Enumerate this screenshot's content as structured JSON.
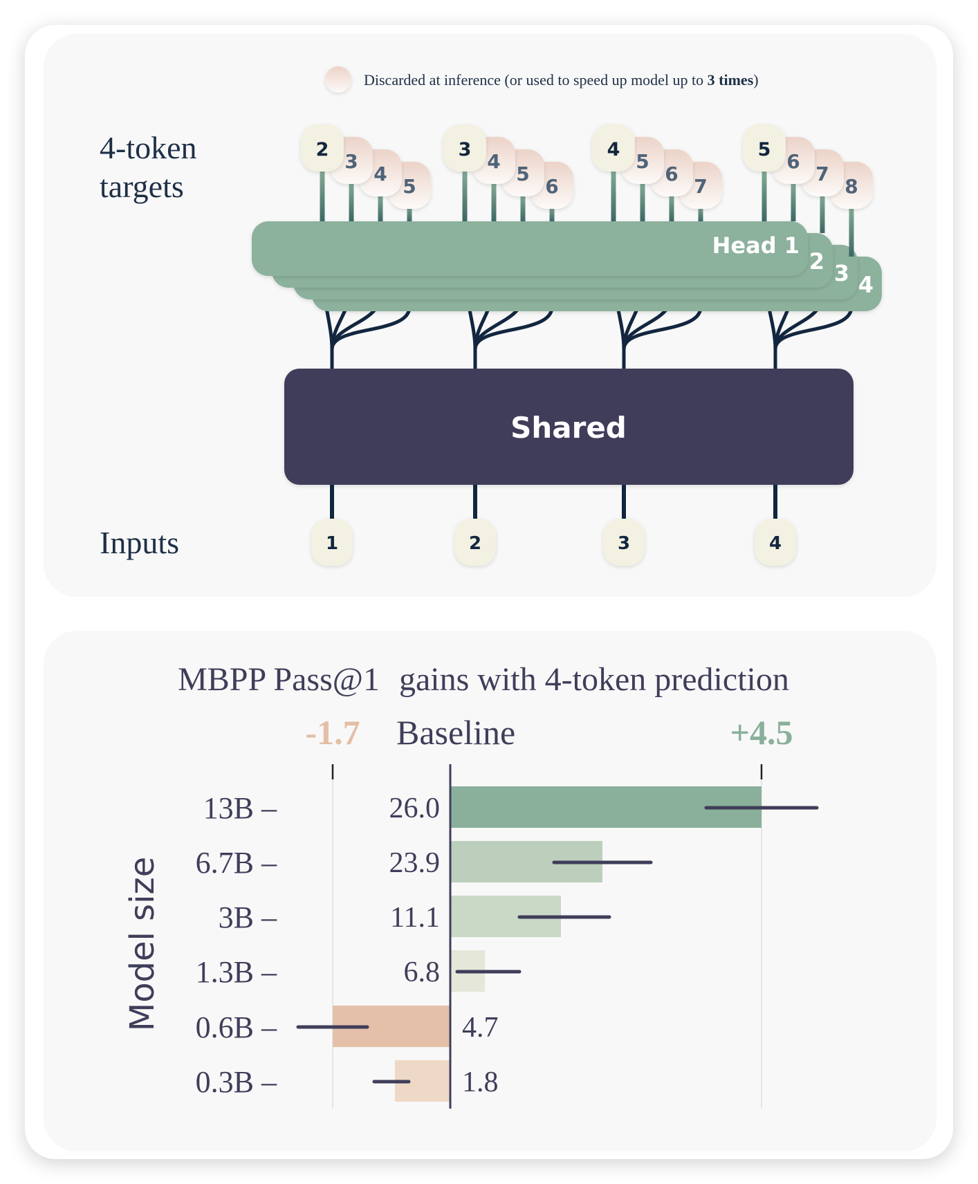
{
  "diagram": {
    "legend": {
      "text_prefix": "Discarded at inference (or used to speed up model up to ",
      "text_bold": "3 times",
      "text_suffix": ")"
    },
    "targets_label_line1": "4-token",
    "targets_label_line2": "targets",
    "inputs_label": "Inputs",
    "shared_label": "Shared",
    "head_labels": [
      "Head 1",
      "2",
      "3",
      "4"
    ],
    "inputs": [
      "1",
      "2",
      "3",
      "4"
    ],
    "target_groups": [
      [
        "2",
        "3",
        "4",
        "5"
      ],
      [
        "3",
        "4",
        "5",
        "6"
      ],
      [
        "4",
        "5",
        "6",
        "7"
      ],
      [
        "5",
        "6",
        "7",
        "8"
      ]
    ]
  },
  "colors": {
    "navy": "#3f3e5a",
    "text": "#1e2f47",
    "head_green": "#8cb19d",
    "input_cream": "#f3f1e1",
    "discarded_top": "#ecd3c8",
    "discarded_bottom": "#fbf8f6",
    "neg_orange": "#e4bea6",
    "pos_green": "#8ab09b"
  },
  "chart_data": {
    "type": "bar",
    "orientation": "horizontal",
    "title_part1": "MBPP Pass@1",
    "title_part2": "gains with 4-token prediction",
    "ylabel": "Model size",
    "categories": [
      "13B",
      "6.7B",
      "3B",
      "1.3B",
      "0.6B",
      "0.3B"
    ],
    "tick_suffix": " –",
    "baseline_label": "Baseline",
    "min_label": "-1.7",
    "max_label": "+4.5",
    "xlim": [
      -1.7,
      4.5
    ],
    "baseline_values": [
      "26.0",
      "23.9",
      "11.1",
      "6.8",
      "4.7",
      "1.8"
    ],
    "gains": [
      4.5,
      2.2,
      1.6,
      0.5,
      -1.7,
      -0.8
    ],
    "error_low": [
      3.7,
      1.5,
      1.0,
      0.1,
      -2.2,
      -1.1
    ],
    "error_high": [
      5.3,
      2.9,
      2.3,
      1.0,
      -1.2,
      -0.6
    ],
    "bar_colors": [
      "#8ab09b",
      "#bccfbc",
      "#c9d9c6",
      "#e5e7d9",
      "#e4c0a9",
      "#eed9c7"
    ]
  }
}
